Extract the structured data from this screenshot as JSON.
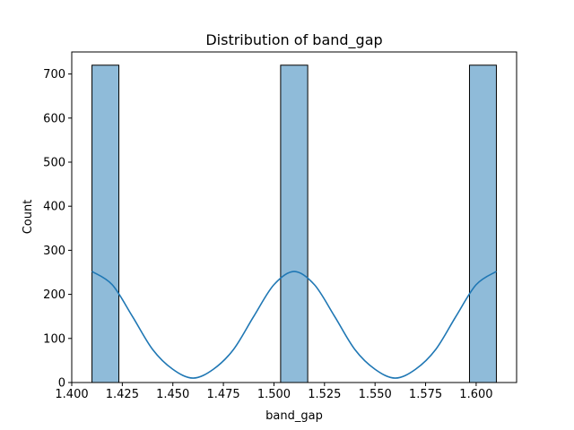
{
  "chart_data": {
    "type": "bar",
    "title": "Distribution of band_gap",
    "xlabel": "band_gap",
    "ylabel": "Count",
    "xlim": [
      1.4,
      1.62
    ],
    "ylim": [
      0,
      750
    ],
    "xticks": [
      "1.400",
      "1.425",
      "1.450",
      "1.475",
      "1.500",
      "1.525",
      "1.550",
      "1.575",
      "1.600"
    ],
    "yticks": [
      "0",
      "100",
      "200",
      "300",
      "400",
      "500",
      "600",
      "700"
    ],
    "bins": [
      {
        "start": 1.41,
        "end": 1.4233,
        "count": 720
      },
      {
        "start": 1.4233,
        "end": 1.4367,
        "count": 0
      },
      {
        "start": 1.4367,
        "end": 1.45,
        "count": 0
      },
      {
        "start": 1.45,
        "end": 1.4633,
        "count": 0
      },
      {
        "start": 1.4633,
        "end": 1.4767,
        "count": 0
      },
      {
        "start": 1.4767,
        "end": 1.49,
        "count": 0
      },
      {
        "start": 1.49,
        "end": 1.5033,
        "count": 0
      },
      {
        "start": 1.5033,
        "end": 1.5167,
        "count": 720
      },
      {
        "start": 1.5167,
        "end": 1.53,
        "count": 0
      },
      {
        "start": 1.53,
        "end": 1.5433,
        "count": 0
      },
      {
        "start": 1.5433,
        "end": 1.5567,
        "count": 0
      },
      {
        "start": 1.5567,
        "end": 1.57,
        "count": 0
      },
      {
        "start": 1.57,
        "end": 1.5833,
        "count": 0
      },
      {
        "start": 1.5833,
        "end": 1.5967,
        "count": 0
      },
      {
        "start": 1.5967,
        "end": 1.61,
        "count": 720
      }
    ],
    "kde": {
      "x": [
        1.41,
        1.42,
        1.43,
        1.44,
        1.45,
        1.46,
        1.47,
        1.48,
        1.49,
        1.5,
        1.51,
        1.52,
        1.53,
        1.54,
        1.55,
        1.56,
        1.57,
        1.58,
        1.59,
        1.6,
        1.61
      ],
      "y": [
        252,
        222,
        150,
        75,
        30,
        10,
        30,
        75,
        150,
        222,
        252,
        222,
        150,
        75,
        30,
        10,
        30,
        75,
        150,
        222,
        252
      ]
    },
    "bar_color": "#8fbbd9",
    "bar_edge_color": "#000000",
    "line_color": "#1f77b4",
    "grid": false
  }
}
